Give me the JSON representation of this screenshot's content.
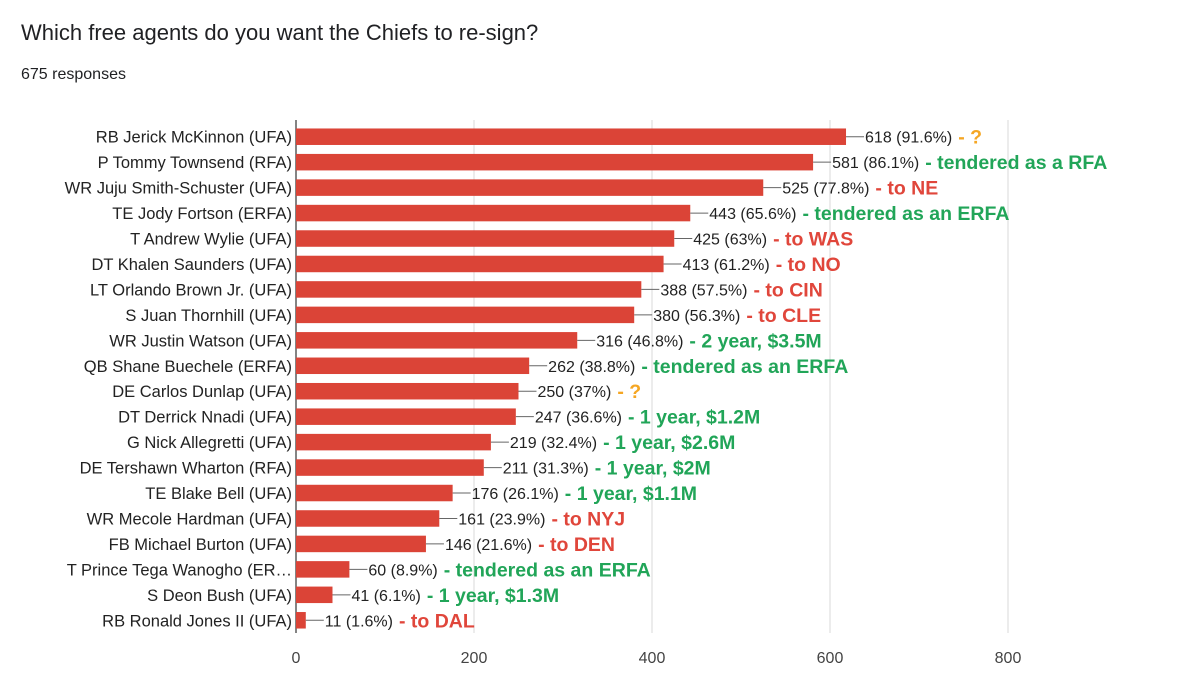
{
  "header": {
    "title": "Which free agents do you want the Chiefs to re-sign?",
    "responses": "675 responses"
  },
  "colors": {
    "bar": "#db4437",
    "note_red": "#e0463b",
    "note_green": "#21a558",
    "note_orange": "#f5a623",
    "grid": "#d9d9d9",
    "axis": "#333333"
  },
  "chart_data": {
    "type": "bar",
    "orientation": "horizontal",
    "categories": [
      "RB Jerick McKinnon (UFA)",
      "P Tommy Townsend (RFA)",
      "WR Juju Smith-Schuster (UFA)",
      "TE Jody Fortson (ERFA)",
      "T Andrew Wylie (UFA)",
      "DT Khalen Saunders (UFA)",
      "LT Orlando Brown Jr. (UFA)",
      "S Juan Thornhill (UFA)",
      "WR Justin Watson (UFA)",
      "QB Shane Buechele (ERFA)",
      "DE Carlos Dunlap (UFA)",
      "DT Derrick Nnadi (UFA)",
      "G Nick Allegretti (UFA)",
      "DE Tershawn Wharton (RFA)",
      "TE Blake Bell (UFA)",
      "WR Mecole Hardman (UFA)",
      "FB Michael Burton (UFA)",
      "T Prince Tega Wanogho (ER…",
      "S Deon Bush (UFA)",
      "RB Ronald Jones II (UFA)"
    ],
    "values": [
      618,
      581,
      525,
      443,
      425,
      413,
      388,
      380,
      316,
      262,
      250,
      247,
      219,
      211,
      176,
      161,
      146,
      60,
      41,
      11
    ],
    "value_labels": [
      "618 (91.6%)",
      "581 (86.1%)",
      "525 (77.8%)",
      "443 (65.6%)",
      "425 (63%)",
      "413 (61.2%)",
      "388 (57.5%)",
      "380 (56.3%)",
      "316 (46.8%)",
      "262 (38.8%)",
      "250 (37%)",
      "247 (36.6%)",
      "219 (32.4%)",
      "211 (31.3%)",
      "176 (26.1%)",
      "161 (23.9%)",
      "146 (21.6%)",
      "60 (8.9%)",
      "41 (6.1%)",
      "11 (1.6%)"
    ],
    "annotations": [
      {
        "text": "- ?",
        "color": "orange"
      },
      {
        "text": "- tendered as a RFA",
        "color": "green"
      },
      {
        "text": "- to NE",
        "color": "red"
      },
      {
        "text": "- tendered as an ERFA",
        "color": "green"
      },
      {
        "text": "- to WAS",
        "color": "red"
      },
      {
        "text": "- to NO",
        "color": "red"
      },
      {
        "text": "- to CIN",
        "color": "red"
      },
      {
        "text": "- to CLE",
        "color": "red"
      },
      {
        "text": "- 2 year, $3.5M",
        "color": "green"
      },
      {
        "text": "- tendered as an ERFA",
        "color": "green"
      },
      {
        "text": "- ?",
        "color": "orange"
      },
      {
        "text": "- 1 year, $1.2M",
        "color": "green"
      },
      {
        "text": "- 1 year, $2.6M",
        "color": "green"
      },
      {
        "text": "- 1 year, $2M",
        "color": "green"
      },
      {
        "text": "- 1 year, $1.1M",
        "color": "green"
      },
      {
        "text": "- to NYJ",
        "color": "red"
      },
      {
        "text": "- to DEN",
        "color": "red"
      },
      {
        "text": "- tendered as an ERFA",
        "color": "green"
      },
      {
        "text": "- 1 year, $1.3M",
        "color": "green"
      },
      {
        "text": "- to DAL",
        "color": "red"
      }
    ],
    "xlim": [
      0,
      800
    ],
    "xticks": [
      0,
      200,
      400,
      600,
      800
    ],
    "grid": true,
    "legend": "none"
  }
}
